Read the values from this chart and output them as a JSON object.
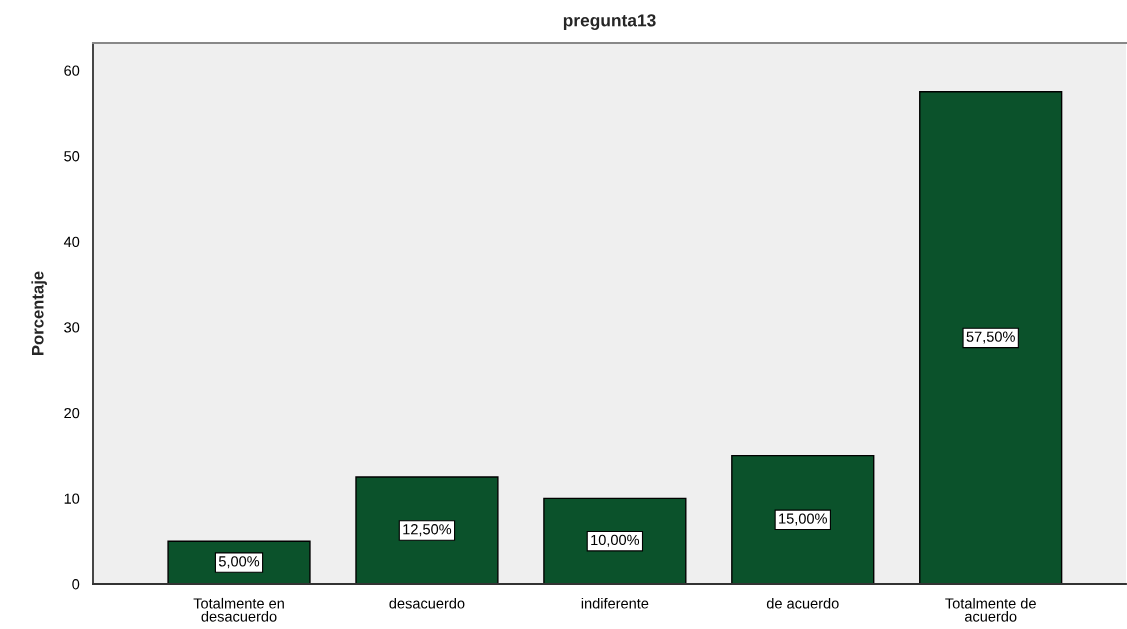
{
  "chart_data": {
    "type": "bar",
    "title": "pregunta13",
    "ylabel": "Porcentaje",
    "categories": [
      "Totalmente en\ndesacuerdo",
      "desacuerdo",
      "indiferente",
      "de acuerdo",
      "Totalmente de\nacuerdo"
    ],
    "values": [
      5,
      12.5,
      10,
      15,
      57.5
    ],
    "color": "#0b522b",
    "value_labels": [
      "5,00%",
      "12,50%",
      "10,00%",
      "15,00%",
      "57,50%"
    ],
    "ylim": [
      0,
      63.2
    ],
    "yticks": [
      0,
      10,
      20,
      30,
      40,
      50,
      60
    ],
    "grid": false,
    "legend": false
  }
}
